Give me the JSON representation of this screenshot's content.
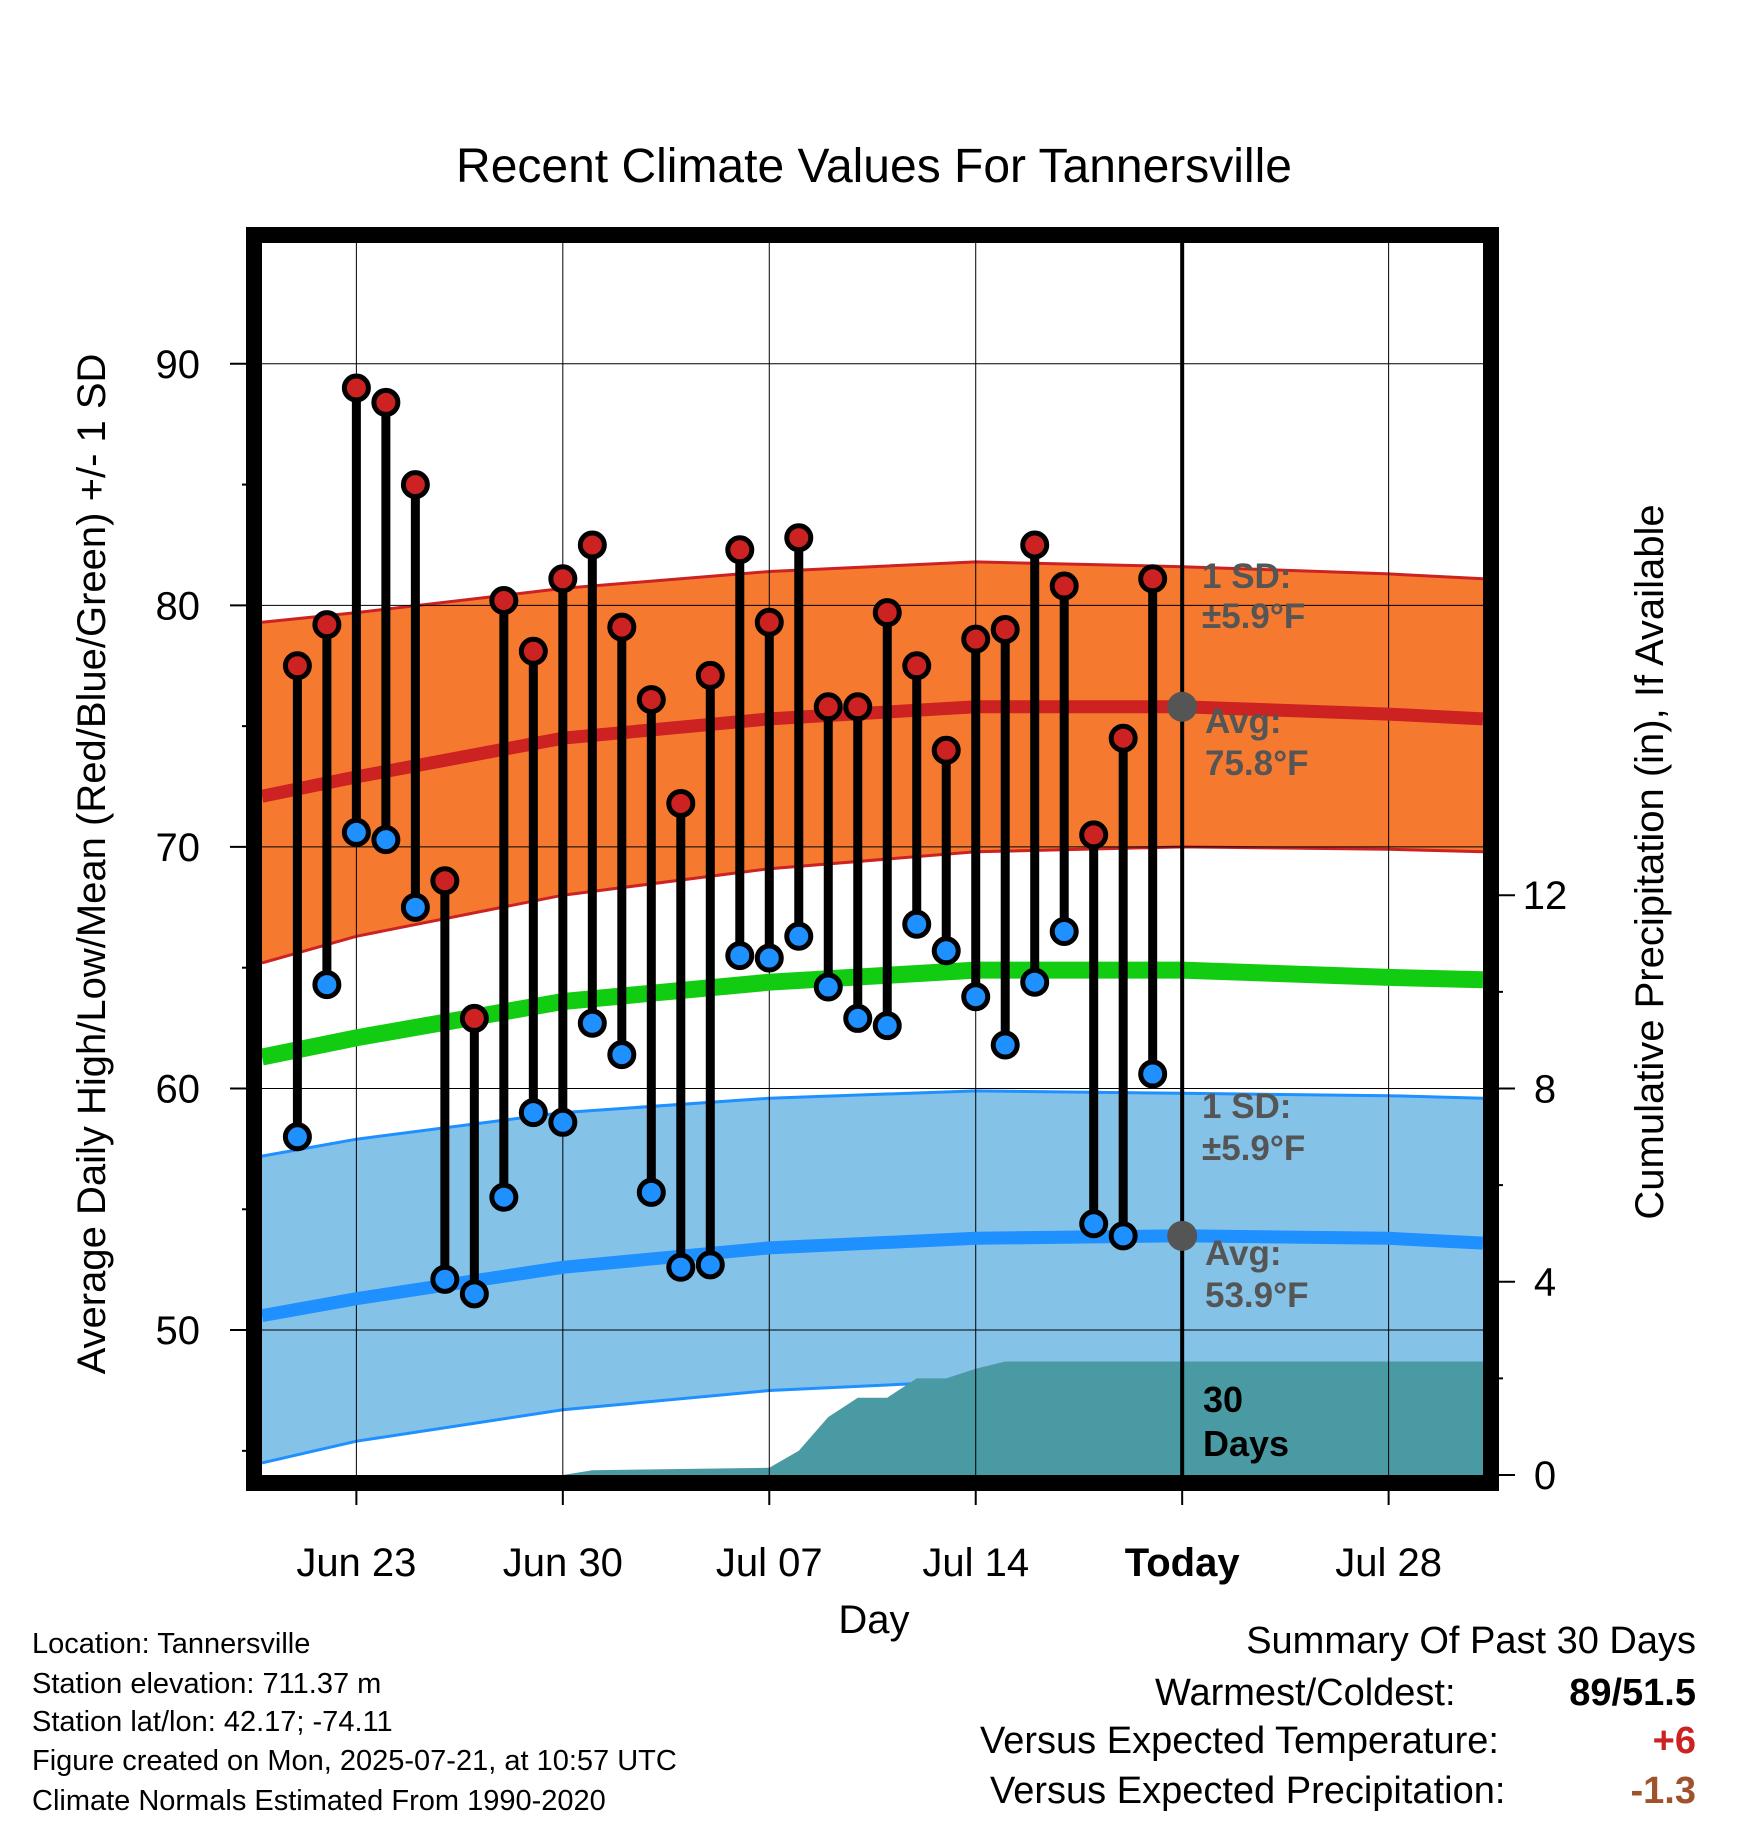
{
  "chart_data": {
    "type": "line",
    "title": "Recent Climate Values For Tannersville",
    "xlabel": "Day",
    "ylabel": "Average Daily High/Low/Mean (Red/Blue/Green) +/- 1 SD",
    "y2label": "Cumulative Precipitation (in), If Available",
    "ylim": [
      44,
      95
    ],
    "y2lim": [
      0,
      25.5
    ],
    "xlim": [
      -3.2,
      38.2
    ],
    "yticks": [
      50,
      60,
      70,
      80,
      90
    ],
    "y2ticks": [
      0,
      4,
      8,
      12
    ],
    "xticks": [
      {
        "day": 0,
        "label": "Jun 23"
      },
      {
        "day": 7,
        "label": "Jun 30"
      },
      {
        "day": 14,
        "label": "Jul 07"
      },
      {
        "day": 21,
        "label": "Jul 14"
      },
      {
        "day": 28,
        "label": "Today"
      },
      {
        "day": 35,
        "label": "Jul 28"
      }
    ],
    "today_day": 28,
    "grid": true,
    "days": [
      -2,
      -1,
      0,
      1,
      2,
      3,
      4,
      5,
      6,
      7,
      8,
      9,
      10,
      11,
      12,
      13,
      14,
      15,
      16,
      17,
      18,
      19,
      20,
      21,
      22,
      23,
      24,
      25,
      26,
      27
    ],
    "highs": [
      77.5,
      79.2,
      89.0,
      88.4,
      85.0,
      68.6,
      62.9,
      80.2,
      78.1,
      81.1,
      82.5,
      79.1,
      76.1,
      71.8,
      77.1,
      82.3,
      79.3,
      82.8,
      75.8,
      75.8,
      79.7,
      77.5,
      74.0,
      78.6,
      79.0,
      82.5,
      80.8,
      70.5,
      74.5,
      81.1
    ],
    "lows": [
      58.0,
      64.3,
      70.6,
      70.3,
      67.5,
      52.1,
      51.5,
      55.5,
      59.0,
      58.6,
      62.7,
      61.4,
      55.7,
      52.6,
      52.7,
      65.5,
      65.4,
      66.3,
      64.2,
      62.9,
      62.6,
      66.8,
      65.7,
      63.8,
      61.8,
      64.4,
      66.5,
      54.4,
      53.9,
      60.6
    ],
    "normals": {
      "x": [
        -3.2,
        0,
        7,
        14,
        21,
        28,
        35,
        38.2
      ],
      "avg_high": [
        72.1,
        72.9,
        74.5,
        75.3,
        75.8,
        75.8,
        75.5,
        75.3
      ],
      "avg_low": [
        50.6,
        51.3,
        52.6,
        53.4,
        53.8,
        53.9,
        53.8,
        53.6
      ],
      "avg_mean": [
        61.3,
        62.1,
        63.6,
        64.4,
        64.9,
        64.9,
        64.6,
        64.5
      ],
      "high_upper": [
        79.3,
        79.7,
        80.7,
        81.4,
        81.8,
        81.6,
        81.3,
        81.1
      ],
      "high_lower": [
        65.2,
        66.3,
        68.0,
        69.1,
        69.8,
        70.0,
        69.9,
        69.8
      ],
      "low_upper": [
        57.2,
        57.9,
        59.0,
        59.6,
        59.9,
        59.8,
        59.7,
        59.6
      ],
      "low_lower": [
        44.5,
        45.4,
        46.7,
        47.5,
        47.9,
        48.0,
        47.9,
        47.8
      ]
    },
    "precip": {
      "x": [
        7,
        8,
        14,
        15,
        16,
        17,
        18,
        19,
        20,
        21,
        22,
        23,
        38.2
      ],
      "cumulative": [
        0,
        0.1,
        0.15,
        0.5,
        1.2,
        1.6,
        1.6,
        2.0,
        2.0,
        2.2,
        2.35,
        2.35,
        2.35
      ]
    },
    "annotations": {
      "high_sd": {
        "line1": "1 SD:",
        "line2": "±5.9°F"
      },
      "high_avg": {
        "line1": "Avg:",
        "line2": "75.8°F"
      },
      "low_sd": {
        "line1": "1 SD:",
        "line2": "±5.9°F"
      },
      "low_avg": {
        "line1": "Avg:",
        "line2": "53.9°F"
      },
      "days": {
        "line1": "30",
        "line2": "Days"
      }
    },
    "colors": {
      "high": "#cc2222",
      "low": "#1e90ff",
      "mean": "#11cc11",
      "high_band": "#f57a30",
      "low_band": "#85c2e8",
      "precip": "#4a9aa4",
      "today_marker": "#555555"
    }
  },
  "info": {
    "location": "Location: Tannersville",
    "elevation": "Station elevation: 711.37 m",
    "latlon": "Station lat/lon: 42.17; -74.11",
    "created": "Figure created on Mon, 2025-07-21, at 10:57 UTC",
    "normals": "Climate Normals Estimated From 1990-2020"
  },
  "summary": {
    "heading": "Summary Of Past 30 Days",
    "warmest_label": "Warmest/Coldest:",
    "warmest_value": "89/51.5",
    "temp_label": "Versus Expected Temperature:",
    "temp_value": "+6",
    "temp_color": "#cc2222",
    "precip_label": "Versus Expected Precipitation:",
    "precip_value": "-1.3",
    "precip_color": "#a0522d"
  }
}
